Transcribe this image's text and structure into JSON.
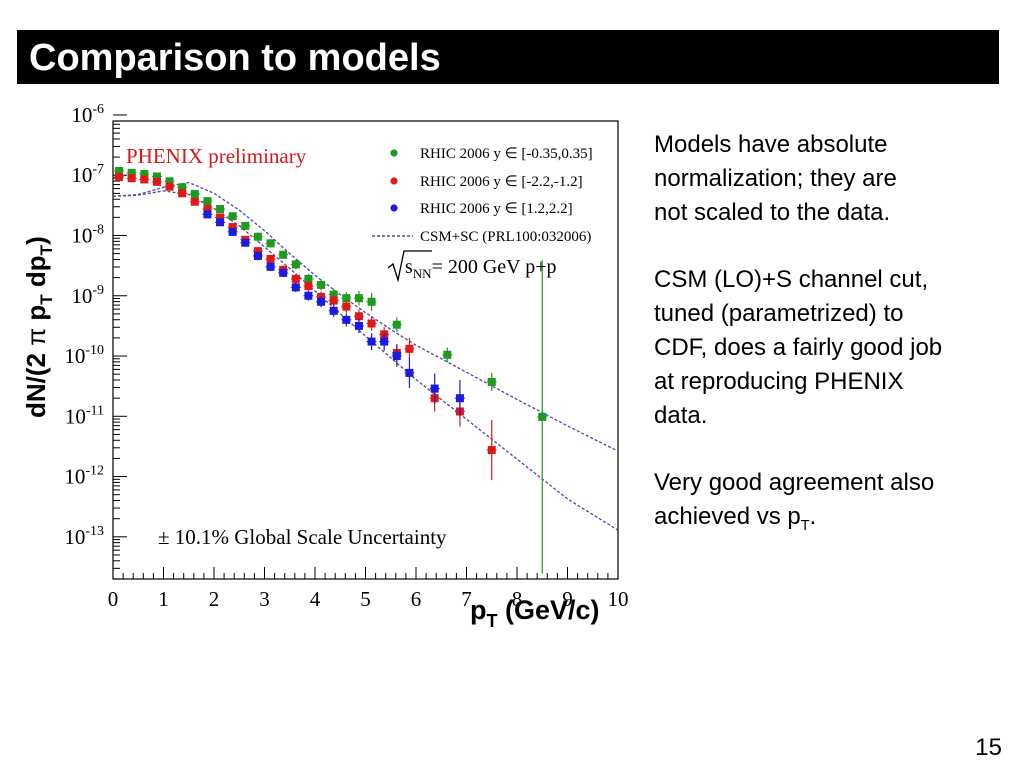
{
  "slide": {
    "title": "Comparison to models",
    "page_number": "15",
    "bullets": [
      {
        "lines": [
          "Models have absolute",
          "normalization; they are",
          "not scaled to the data."
        ]
      },
      {
        "lines": [
          "CSM (LO)+S channel cut,",
          "tuned (parametrized) to",
          "CDF, does a fairly good job",
          "at reproducing PHENIX",
          "data."
        ]
      },
      {
        "lines": [
          "Very good agreement also"
        ],
        "last_line_prefix": "achieved vs p",
        "last_line_sub": "T",
        "last_line_suffix": "."
      }
    ]
  },
  "chart_data": {
    "type": "scatter",
    "log_y": true,
    "xlim": [
      0,
      10
    ],
    "ylim_exponent": [
      -13.7,
      -6.1
    ],
    "x_ticks": [
      "0",
      "1",
      "2",
      "3",
      "4",
      "5",
      "6",
      "7",
      "8",
      "9",
      "10"
    ],
    "y_tick_base": "10",
    "y_tick_exponents": [
      "-6",
      "-7",
      "-8",
      "-9",
      "-10",
      "-11",
      "-12",
      "-13"
    ],
    "xlabel": {
      "main": "p",
      "sub": "T",
      "rest": " (GeV/c)"
    },
    "ylabel": {
      "a": "dN/(2 ",
      "pi": "π",
      "b": " p",
      "sub1": "T",
      "c": " dp",
      "sub2": "T",
      "d": ")"
    },
    "annotations": {
      "experiment": "PHENIX preliminary",
      "energy_prefix": "s",
      "energy_sub": "NN",
      "energy_rest": "= 200 GeV p+p",
      "global_uncertainty": "± 10.1% Global Scale Uncertainty"
    },
    "colors": {
      "green": "#1e9a1e",
      "red": "#e01818",
      "blue": "#1a1ae0",
      "model": "#5a3fb0",
      "experiment": "#d81818"
    },
    "legend": {
      "position": "top-right",
      "entries": [
        {
          "prefix": "RHIC 2006 y ",
          "set": "∈",
          "range": " [-0.35,0.35]",
          "color": "#1e9a1e"
        },
        {
          "prefix": "RHIC 2006 y ",
          "set": "∈",
          "range": " [-2.2,-1.2]",
          "color": "#e01818"
        },
        {
          "prefix": "RHIC 2006 y ",
          "set": "∈",
          "range": " [1.2,2.2]",
          "color": "#1a1ae0"
        },
        {
          "label": "CSM+SC (PRL100:032006)",
          "color": "#5a3fb0",
          "dashed": true
        }
      ]
    },
    "series": [
      {
        "name": "RHIC 2006 y ∈ [-0.35,0.35]",
        "color": "#1e9a1e",
        "points": [
          [
            0.12,
            -6.93,
            0.05
          ],
          [
            0.37,
            -6.96,
            0.05
          ],
          [
            0.62,
            -6.98,
            0.05
          ],
          [
            0.87,
            -7.02,
            0.05
          ],
          [
            1.12,
            -7.1,
            0.05
          ],
          [
            1.37,
            -7.2,
            0.05
          ],
          [
            1.62,
            -7.31,
            0.05
          ],
          [
            1.87,
            -7.43,
            0.06
          ],
          [
            2.12,
            -7.56,
            0.06
          ],
          [
            2.37,
            -7.68,
            0.06
          ],
          [
            2.62,
            -7.84,
            0.06
          ],
          [
            2.87,
            -8.02,
            0.07
          ],
          [
            3.12,
            -8.13,
            0.07
          ],
          [
            3.37,
            -8.32,
            0.07
          ],
          [
            3.62,
            -8.48,
            0.08
          ],
          [
            3.87,
            -8.72,
            0.08
          ],
          [
            4.12,
            -8.82,
            0.09
          ],
          [
            4.37,
            -8.98,
            0.1
          ],
          [
            4.62,
            -9.04,
            0.1
          ],
          [
            4.87,
            -9.04,
            0.12
          ],
          [
            5.12,
            -9.1,
            0.15
          ],
          [
            5.62,
            -9.48,
            0.12
          ],
          [
            6.62,
            -9.98,
            0.12
          ],
          [
            7.5,
            -10.43,
            0.15
          ],
          [
            8.5,
            -11.01,
            2.6
          ]
        ]
      },
      {
        "name": "RHIC 2006 y ∈ [-2.2,-1.2]",
        "color": "#e01818",
        "points": [
          [
            0.12,
            -7.03,
            0.05
          ],
          [
            0.37,
            -7.05,
            0.05
          ],
          [
            0.62,
            -7.07,
            0.05
          ],
          [
            0.87,
            -7.11,
            0.05
          ],
          [
            1.12,
            -7.19,
            0.05
          ],
          [
            1.37,
            -7.3,
            0.05
          ],
          [
            1.62,
            -7.44,
            0.05
          ],
          [
            1.87,
            -7.56,
            0.06
          ],
          [
            2.12,
            -7.7,
            0.06
          ],
          [
            2.37,
            -7.86,
            0.06
          ],
          [
            2.62,
            -8.07,
            0.06
          ],
          [
            2.87,
            -8.26,
            0.07
          ],
          [
            3.12,
            -8.39,
            0.07
          ],
          [
            3.37,
            -8.57,
            0.07
          ],
          [
            3.62,
            -8.72,
            0.08
          ],
          [
            3.87,
            -8.84,
            0.08
          ],
          [
            4.12,
            -9.02,
            0.09
          ],
          [
            4.37,
            -9.08,
            0.1
          ],
          [
            4.62,
            -9.18,
            0.1
          ],
          [
            4.87,
            -9.34,
            0.11
          ],
          [
            5.12,
            -9.46,
            0.12
          ],
          [
            5.37,
            -9.64,
            0.12
          ],
          [
            5.62,
            -9.95,
            0.15
          ],
          [
            5.87,
            -9.88,
            0.18
          ],
          [
            6.37,
            -10.7,
            0.22
          ],
          [
            6.87,
            -10.92,
            0.25
          ],
          [
            7.5,
            -11.56,
            0.5
          ]
        ]
      },
      {
        "name": "RHIC 2006 y ∈ [1.2,2.2]",
        "color": "#1a1ae0",
        "points": [
          [
            1.87,
            -7.65,
            0.05
          ],
          [
            2.12,
            -7.78,
            0.05
          ],
          [
            2.37,
            -7.94,
            0.06
          ],
          [
            2.62,
            -8.12,
            0.06
          ],
          [
            2.87,
            -8.34,
            0.07
          ],
          [
            3.12,
            -8.52,
            0.07
          ],
          [
            3.37,
            -8.62,
            0.07
          ],
          [
            3.62,
            -8.86,
            0.08
          ],
          [
            3.87,
            -9.0,
            0.08
          ],
          [
            4.12,
            -9.1,
            0.09
          ],
          [
            4.37,
            -9.25,
            0.1
          ],
          [
            4.62,
            -9.4,
            0.11
          ],
          [
            4.87,
            -9.5,
            0.12
          ],
          [
            5.12,
            -9.76,
            0.14
          ],
          [
            5.37,
            -9.76,
            0.15
          ],
          [
            5.62,
            -10.0,
            0.18
          ],
          [
            5.87,
            -10.28,
            0.25
          ],
          [
            6.37,
            -10.54,
            0.25
          ],
          [
            6.87,
            -10.7,
            0.3
          ]
        ]
      }
    ],
    "models": [
      {
        "name": "CSM+SC upper",
        "color": "#5a3fb0",
        "points": [
          [
            0.0,
            -7.35
          ],
          [
            0.5,
            -7.32
          ],
          [
            1.0,
            -7.2
          ],
          [
            1.5,
            -7.12
          ],
          [
            2.0,
            -7.3
          ],
          [
            2.5,
            -7.58
          ],
          [
            3.0,
            -7.92
          ],
          [
            3.5,
            -8.3
          ],
          [
            4.0,
            -8.66
          ],
          [
            4.5,
            -8.98
          ],
          [
            5.0,
            -9.28
          ],
          [
            5.5,
            -9.56
          ],
          [
            6.0,
            -9.82
          ],
          [
            7.0,
            -10.27
          ],
          [
            8.0,
            -10.72
          ],
          [
            9.0,
            -11.16
          ],
          [
            10.0,
            -11.58
          ]
        ]
      },
      {
        "name": "CSM+SC lower",
        "color": "#5a3fb0",
        "points": [
          [
            0.0,
            -7.35
          ],
          [
            0.5,
            -7.33
          ],
          [
            1.0,
            -7.26
          ],
          [
            1.5,
            -7.32
          ],
          [
            2.0,
            -7.55
          ],
          [
            2.5,
            -7.84
          ],
          [
            3.0,
            -8.19
          ],
          [
            3.5,
            -8.55
          ],
          [
            4.0,
            -8.92
          ],
          [
            4.5,
            -9.3
          ],
          [
            5.0,
            -9.67
          ],
          [
            5.5,
            -10.03
          ],
          [
            6.0,
            -10.39
          ],
          [
            7.0,
            -11.05
          ],
          [
            8.0,
            -11.71
          ],
          [
            8.5,
            -12.04
          ],
          [
            9.0,
            -12.37
          ],
          [
            10.0,
            -12.89
          ]
        ]
      }
    ]
  }
}
